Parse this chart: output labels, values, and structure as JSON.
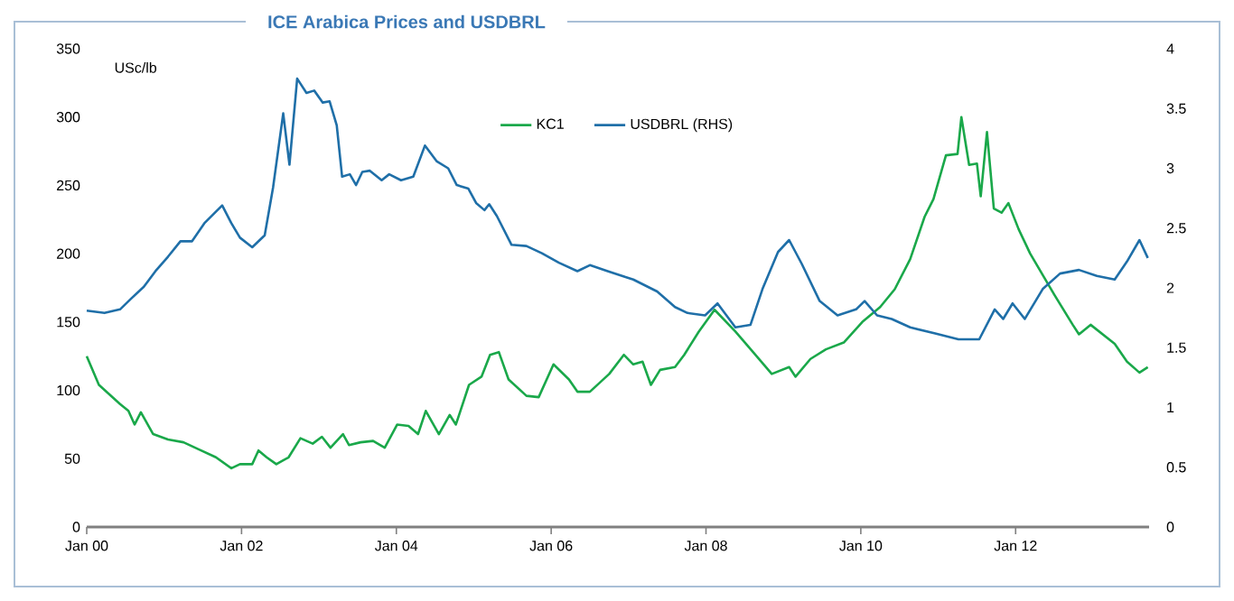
{
  "chart_data": {
    "type": "line",
    "title": "ICE Arabica Prices and USDBRL",
    "ylabel": "USc/lb",
    "xlim": [
      "2000-01-01",
      "2013-09-22"
    ],
    "xticks": [
      {
        "value": "2000-01-01",
        "label": "Jan 00"
      },
      {
        "value": "2002-01-01",
        "label": "Jan 02"
      },
      {
        "value": "2004-01-01",
        "label": "Jan 04"
      },
      {
        "value": "2006-01-01",
        "label": "Jan 06"
      },
      {
        "value": "2008-01-01",
        "label": "Jan 08"
      },
      {
        "value": "2010-01-01",
        "label": "Jan 10"
      },
      {
        "value": "2012-01-01",
        "label": "Jan 12"
      }
    ],
    "ylim": [
      0,
      350
    ],
    "yticks": [
      0,
      50,
      100,
      150,
      200,
      250,
      300,
      350
    ],
    "y2lim": [
      0,
      4
    ],
    "y2ticks": [
      0,
      0.5,
      1,
      1.5,
      2,
      2.5,
      3,
      3.5,
      4
    ],
    "grid": false,
    "legend": "top",
    "marker": "none",
    "line_style": "solid",
    "series": [
      {
        "name": "KC1",
        "color": "#1aa84a",
        "x": [
          "2000-01-01",
          "2000-02-28",
          "2000-06-06",
          "2000-07-15",
          "2000-08-14",
          "2000-09-13",
          "2000-11-10",
          "2001-01-19",
          "2001-04-01",
          "2001-06-09",
          "2001-09-02",
          "2001-11-14",
          "2001-12-24",
          "2002-02-21",
          "2002-03-20",
          "2002-04-28",
          "2002-06-13",
          "2002-08-10",
          "2002-10-05",
          "2002-12-02",
          "2003-01-15",
          "2003-02-25",
          "2003-04-23",
          "2003-05-21",
          "2003-07-15",
          "2003-09-13",
          "2003-11-07",
          "2004-01-05",
          "2004-02-28",
          "2004-04-12",
          "2004-05-18",
          "2004-07-19",
          "2004-09-09",
          "2004-10-08",
          "2004-12-09",
          "2005-02-07",
          "2005-03-17",
          "2005-04-28",
          "2005-06-13",
          "2005-09-06",
          "2005-11-03",
          "2006-01-12",
          "2006-03-24",
          "2006-05-03",
          "2006-07-01",
          "2006-10-01",
          "2006-12-09",
          "2007-01-23",
          "2007-03-06",
          "2007-04-15",
          "2007-05-28",
          "2007-08-07",
          "2007-09-20",
          "2007-11-28",
          "2008-02-11",
          "2008-05-18",
          "2008-08-10",
          "2008-11-07",
          "2009-01-28",
          "2009-02-28",
          "2009-05-07",
          "2009-07-19",
          "2009-10-12",
          "2010-01-08",
          "2010-04-01",
          "2010-06-09",
          "2010-08-21",
          "2010-10-28",
          "2010-12-09",
          "2011-02-07",
          "2011-04-01",
          "2011-04-19",
          "2011-05-25",
          "2011-07-01",
          "2011-07-19",
          "2011-08-18",
          "2011-09-20",
          "2011-10-26",
          "2011-11-28",
          "2012-01-15",
          "2012-03-09",
          "2012-07-01",
          "2012-09-27",
          "2012-10-26",
          "2012-12-20",
          "2013-04-12",
          "2013-06-09",
          "2013-08-07",
          "2013-09-16"
        ],
        "values": [
          125,
          104,
          90,
          85,
          75,
          84,
          68,
          64,
          62,
          57,
          51,
          43,
          46,
          46,
          56,
          51,
          46,
          51,
          65,
          61,
          66,
          58,
          68,
          60,
          62,
          63,
          58,
          75,
          74,
          68,
          85,
          68,
          82,
          75,
          104,
          110,
          126,
          128,
          108,
          96,
          95,
          119,
          108,
          99,
          99,
          112,
          126,
          119,
          121,
          104,
          115,
          117,
          126,
          143,
          159,
          143,
          128,
          112,
          117,
          110,
          123,
          130,
          135,
          150,
          161,
          174,
          196,
          227,
          240,
          272,
          273,
          300,
          265,
          266,
          242,
          289,
          233,
          230,
          237,
          218,
          200,
          170,
          148,
          141,
          148,
          134,
          121,
          113,
          117
        ]
      },
      {
        "name": "USDBRL (RHS)",
        "color": "#1f6fa8",
        "axis": "y2",
        "x": [
          "2000-01-01",
          "2000-03-24",
          "2000-06-06",
          "2000-07-28",
          "2000-09-27",
          "2000-11-21",
          "2001-01-19",
          "2001-03-17",
          "2001-05-11",
          "2001-07-08",
          "2001-10-01",
          "2001-11-14",
          "2001-12-24",
          "2002-02-21",
          "2002-04-19",
          "2002-05-28",
          "2002-07-15",
          "2002-08-14",
          "2002-09-20",
          "2002-11-03",
          "2002-12-09",
          "2003-01-19",
          "2003-02-21",
          "2003-03-24",
          "2003-04-19",
          "2003-05-25",
          "2003-06-24",
          "2003-07-23",
          "2003-08-28",
          "2003-10-23",
          "2003-11-28",
          "2004-01-23",
          "2004-03-20",
          "2004-05-14",
          "2004-07-08",
          "2004-09-02",
          "2004-10-12",
          "2004-12-06",
          "2005-01-12",
          "2005-02-21",
          "2005-03-13",
          "2005-04-19",
          "2005-06-27",
          "2005-09-06",
          "2005-11-18",
          "2006-02-07",
          "2006-05-03",
          "2006-07-01",
          "2006-09-24",
          "2006-12-17",
          "2007-01-23",
          "2007-05-14",
          "2007-08-07",
          "2007-10-05",
          "2007-12-27",
          "2008-02-25",
          "2008-05-18",
          "2008-07-28",
          "2008-09-24",
          "2008-12-06",
          "2009-01-28",
          "2009-03-27",
          "2009-06-20",
          "2009-09-13",
          "2009-12-09",
          "2010-01-19",
          "2010-03-17",
          "2010-05-25",
          "2010-08-21",
          "2010-12-13",
          "2011-04-05",
          "2011-07-12",
          "2011-09-24",
          "2011-11-03",
          "2011-12-17",
          "2012-02-14",
          "2012-05-07",
          "2012-07-28",
          "2012-10-26",
          "2013-01-19",
          "2013-04-12",
          "2013-06-09",
          "2013-08-07",
          "2013-09-16"
        ],
        "values": [
          1.81,
          1.79,
          1.82,
          1.91,
          2.01,
          2.14,
          2.26,
          2.39,
          2.39,
          2.54,
          2.69,
          2.54,
          2.42,
          2.34,
          2.44,
          2.84,
          3.46,
          3.03,
          3.75,
          3.63,
          3.65,
          3.55,
          3.56,
          3.36,
          2.93,
          2.95,
          2.86,
          2.97,
          2.98,
          2.9,
          2.95,
          2.9,
          2.93,
          3.19,
          3.06,
          3.0,
          2.86,
          2.83,
          2.71,
          2.65,
          2.7,
          2.6,
          2.36,
          2.35,
          2.29,
          2.21,
          2.14,
          2.19,
          2.14,
          2.09,
          2.07,
          1.97,
          1.84,
          1.79,
          1.77,
          1.87,
          1.67,
          1.69,
          1.99,
          2.3,
          2.4,
          2.2,
          1.89,
          1.77,
          1.82,
          1.89,
          1.77,
          1.74,
          1.67,
          1.62,
          1.57,
          1.57,
          1.82,
          1.74,
          1.87,
          1.74,
          1.99,
          2.12,
          2.15,
          2.1,
          2.07,
          2.22,
          2.4,
          2.25
        ]
      }
    ]
  }
}
